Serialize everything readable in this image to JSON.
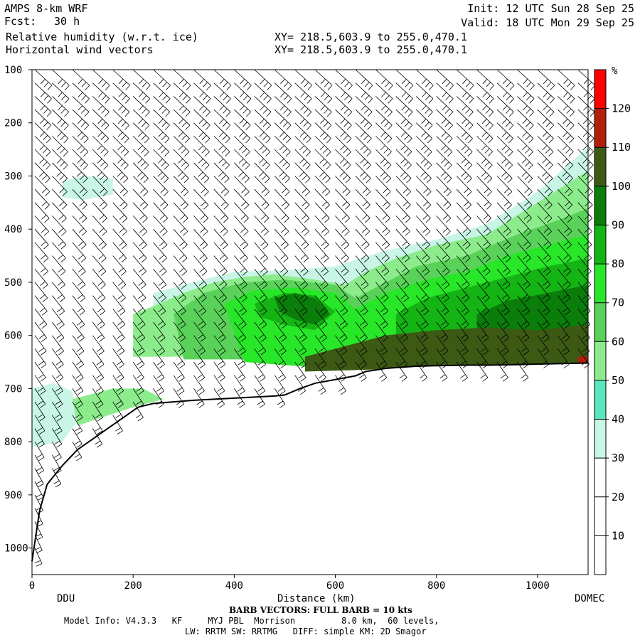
{
  "header": {
    "model": "AMPS 8-km WRF",
    "fcst_label": "Fcst:",
    "fcst_value": "30 h",
    "field1": "Relative humidity (w.r.t. ice)",
    "field2": "Horizontal wind vectors",
    "xy1": "XY= 218.5,603.9 to 255.0,470.1",
    "xy2": "XY= 218.5,603.9 to 255.0,470.1",
    "init": "Init: 12 UTC Sun 28 Sep 25",
    "valid": "Valid: 18 UTC Mon 29 Sep 25"
  },
  "footer": {
    "barb_note": "BARB VECTORS: FULL BARB = 10 kts",
    "model_info": "Model Info: V4.3.3   KF     MYJ PBL  Morrison         8.0 km,  60 levels,",
    "physics": "LW: RRTM SW: RRTMG   DIFF: simple KM: 2D Smagor"
  },
  "chart_data": {
    "type": "heatmap",
    "title": "Relative humidity (w.r.t. ice)",
    "xlabel": "Distance (km)",
    "ylabel": "",
    "xlim": [
      0,
      1100
    ],
    "ylim": [
      1050,
      100
    ],
    "x_ticks": [
      0,
      200,
      400,
      600,
      800,
      1000
    ],
    "y_ticks": [
      100,
      200,
      300,
      400,
      500,
      600,
      700,
      800,
      900,
      1000
    ],
    "endpoint_labels": [
      "DDU",
      "DOMEC"
    ],
    "colorbar": {
      "unit": "%",
      "levels": [
        10,
        20,
        30,
        40,
        50,
        60,
        70,
        80,
        90,
        100,
        110,
        120
      ],
      "colors": [
        "#ffffff",
        "#ffffff",
        "#ffffff",
        "#c8f5e6",
        "#5ae6be",
        "#8cec8c",
        "#5ad25a",
        "#28e628",
        "#14b414",
        "#0a7d0a",
        "#3c5a14",
        "#b41e0a",
        "#ff0000"
      ]
    },
    "terrain_pressure": [
      [
        0,
        1025
      ],
      [
        15,
        930
      ],
      [
        30,
        880
      ],
      [
        60,
        845
      ],
      [
        90,
        815
      ],
      [
        120,
        795
      ],
      [
        150,
        775
      ],
      [
        180,
        755
      ],
      [
        210,
        735
      ],
      [
        240,
        728
      ],
      [
        280,
        725
      ],
      [
        320,
        722
      ],
      [
        360,
        720
      ],
      [
        400,
        718
      ],
      [
        440,
        716
      ],
      [
        480,
        714
      ],
      [
        500,
        712
      ],
      [
        530,
        700
      ],
      [
        560,
        690
      ],
      [
        600,
        683
      ],
      [
        640,
        676
      ],
      [
        660,
        668
      ],
      [
        700,
        662
      ],
      [
        760,
        658
      ],
      [
        800,
        657
      ],
      [
        860,
        656
      ],
      [
        900,
        656
      ],
      [
        960,
        655
      ],
      [
        1000,
        654
      ],
      [
        1050,
        653
      ],
      [
        1100,
        652
      ]
    ],
    "rh_regions": [
      {
        "value": 35,
        "polygon": [
          [
            240,
            520
          ],
          [
            300,
            505
          ],
          [
            400,
            480
          ],
          [
            500,
            478
          ],
          [
            600,
            470
          ],
          [
            700,
            440
          ],
          [
            800,
            420
          ],
          [
            900,
            390
          ],
          [
            1000,
            330
          ],
          [
            1100,
            245
          ],
          [
            1100,
            600
          ],
          [
            240,
            600
          ]
        ]
      },
      {
        "value": 35,
        "polygon": [
          [
            60,
            310
          ],
          [
            100,
            300
          ],
          [
            160,
            305
          ],
          [
            160,
            335
          ],
          [
            100,
            345
          ],
          [
            60,
            340
          ]
        ]
      },
      {
        "value": 35,
        "polygon": [
          [
            0,
            700
          ],
          [
            40,
            690
          ],
          [
            80,
            705
          ],
          [
            90,
            760
          ],
          [
            60,
            800
          ],
          [
            0,
            810
          ]
        ]
      },
      {
        "value": 55,
        "polygon": [
          [
            200,
            560
          ],
          [
            240,
            545
          ],
          [
            300,
            520
          ],
          [
            360,
            500
          ],
          [
            420,
            490
          ],
          [
            480,
            485
          ],
          [
            560,
            495
          ],
          [
            620,
            505
          ],
          [
            660,
            480
          ],
          [
            720,
            455
          ],
          [
            800,
            430
          ],
          [
            900,
            410
          ],
          [
            1000,
            350
          ],
          [
            1100,
            290
          ],
          [
            1100,
            640
          ],
          [
            200,
            640
          ]
        ]
      },
      {
        "value": 55,
        "polygon": [
          [
            80,
            720
          ],
          [
            160,
            700
          ],
          [
            220,
            700
          ],
          [
            260,
            720
          ],
          [
            200,
            735
          ],
          [
            120,
            760
          ],
          [
            90,
            770
          ]
        ]
      },
      {
        "value": 65,
        "polygon": [
          [
            280,
            560
          ],
          [
            340,
            520
          ],
          [
            420,
            500
          ],
          [
            500,
            495
          ],
          [
            600,
            505
          ],
          [
            640,
            530
          ],
          [
            700,
            500
          ],
          [
            760,
            470
          ],
          [
            860,
            450
          ],
          [
            960,
            410
          ],
          [
            1050,
            380
          ],
          [
            1100,
            360
          ],
          [
            1100,
            645
          ],
          [
            300,
            645
          ]
        ]
      },
      {
        "value": 75,
        "polygon": [
          [
            380,
            540
          ],
          [
            440,
            515
          ],
          [
            520,
            510
          ],
          [
            600,
            520
          ],
          [
            640,
            550
          ],
          [
            700,
            520
          ],
          [
            780,
            495
          ],
          [
            860,
            480
          ],
          [
            940,
            450
          ],
          [
            1020,
            430
          ],
          [
            1100,
            410
          ],
          [
            1100,
            650
          ],
          [
            560,
            660
          ],
          [
            420,
            650
          ]
        ]
      },
      {
        "value": 85,
        "polygon": [
          [
            440,
            540
          ],
          [
            500,
            520
          ],
          [
            560,
            525
          ],
          [
            600,
            555
          ],
          [
            560,
            590
          ],
          [
            500,
            580
          ],
          [
            450,
            565
          ]
        ]
      },
      {
        "value": 85,
        "polygon": [
          [
            720,
            560
          ],
          [
            780,
            530
          ],
          [
            860,
            510
          ],
          [
            940,
            490
          ],
          [
            1020,
            470
          ],
          [
            1100,
            455
          ],
          [
            1100,
            620
          ],
          [
            720,
            620
          ]
        ]
      },
      {
        "value": 95,
        "polygon": [
          [
            480,
            530
          ],
          [
            520,
            520
          ],
          [
            560,
            530
          ],
          [
            590,
            560
          ],
          [
            560,
            580
          ],
          [
            520,
            570
          ],
          [
            490,
            555
          ]
        ]
      },
      {
        "value": 95,
        "polygon": [
          [
            880,
            560
          ],
          [
            940,
            535
          ],
          [
            1020,
            520
          ],
          [
            1100,
            505
          ],
          [
            1100,
            610
          ],
          [
            880,
            610
          ]
        ]
      },
      {
        "value": 105,
        "polygon": [
          [
            540,
            640
          ],
          [
            620,
            620
          ],
          [
            700,
            600
          ],
          [
            800,
            590
          ],
          [
            900,
            585
          ],
          [
            1000,
            590
          ],
          [
            1100,
            580
          ],
          [
            1100,
            652
          ],
          [
            540,
            668
          ]
        ]
      },
      {
        "value": 115,
        "polygon": [
          [
            1080,
            640
          ],
          [
            1100,
            640
          ],
          [
            1100,
            652
          ],
          [
            1080,
            652
          ]
        ]
      }
    ],
    "wind_columns": {
      "x": [
        0,
        40,
        80,
        120,
        160,
        200,
        240,
        280,
        320,
        360,
        400,
        440,
        480,
        520,
        560,
        600,
        640,
        680,
        720,
        760,
        800,
        840,
        880,
        920,
        960,
        1000,
        1040,
        1080
      ],
      "levels_top": 100,
      "levels_step": 25
    }
  }
}
